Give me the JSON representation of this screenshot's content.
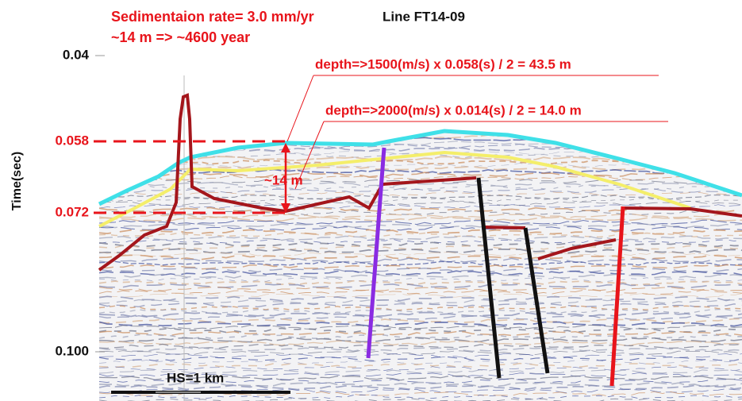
{
  "header": {
    "rate": "Sedimentaion rate= 3.0 mm/yr",
    "age": "~14 m => ~4600 year",
    "line": "Line FT14-09"
  },
  "axis": {
    "label": "Time(sec)",
    "ticks": [
      "0.04",
      "0.058",
      "0.072",
      "0.100"
    ]
  },
  "annotations": {
    "depth1": "depth=>1500(m/s) x 0.058(s) / 2 = 43.5 m",
    "depth2": "depth=>2000(m/s) x 0.014(s) / 2 = 14.0 m",
    "thickness": "~14 m"
  },
  "scale": "HS=1 km"
}
